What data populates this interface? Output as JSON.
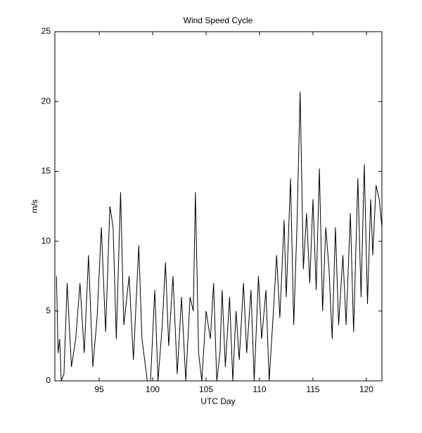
{
  "chart_data": {
    "type": "line",
    "title": "Wind Speed Cycle",
    "x_label": "UTC Day",
    "y_label": "m/s",
    "x": [
      91.0,
      91.15,
      91.3,
      91.45,
      91.7,
      92.0,
      92.4,
      92.8,
      93.2,
      93.6,
      94.0,
      94.4,
      94.8,
      95.2,
      95.6,
      96.0,
      96.3,
      96.6,
      97.0,
      97.3,
      97.8,
      98.2,
      98.7,
      99.0,
      99.5,
      99.8,
      100.2,
      100.5,
      100.9,
      101.2,
      101.5,
      101.9,
      102.3,
      102.7,
      103.1,
      103.5,
      103.8,
      104.0,
      104.3,
      104.6,
      105.0,
      105.4,
      105.7,
      106.0,
      106.3,
      106.5,
      106.8,
      107.2,
      107.5,
      107.8,
      108.1,
      108.5,
      108.8,
      109.2,
      109.5,
      109.9,
      110.2,
      110.6,
      110.9,
      111.3,
      111.6,
      111.9,
      112.3,
      112.5,
      112.9,
      113.2,
      113.5,
      113.8,
      114.1,
      114.4,
      114.7,
      115.0,
      115.3,
      115.6,
      115.9,
      116.2,
      116.5,
      116.8,
      117.1,
      117.4,
      117.8,
      118.1,
      118.5,
      118.8,
      119.2,
      119.5,
      119.8,
      120.1,
      120.4,
      120.6,
      120.9,
      121.2,
      121.45
    ],
    "series": [
      {
        "name": "Wind speed",
        "color": "#000000",
        "values": [
          7.5,
          2,
          3,
          0,
          0.5,
          7,
          1,
          3,
          7,
          2,
          9,
          1,
          4.5,
          11,
          3.5,
          12.5,
          11,
          3,
          13.5,
          4,
          7.5,
          1.5,
          9.7,
          3,
          0,
          0,
          6.5,
          0,
          4,
          8.5,
          2.5,
          7.5,
          0.5,
          6,
          0,
          6,
          5,
          13.5,
          2,
          0,
          5,
          3,
          7,
          0,
          2,
          6.5,
          1,
          6,
          0,
          5,
          1.5,
          7,
          2,
          6.5,
          0,
          7.5,
          3,
          6.5,
          0,
          5,
          9,
          4.5,
          11.5,
          6,
          14.5,
          4,
          11,
          20.7,
          8,
          12,
          7,
          13,
          6.5,
          15.2,
          5,
          11,
          8,
          3,
          11,
          4,
          9,
          4,
          12,
          3.5,
          14.5,
          6,
          15.5,
          5.5,
          13,
          9,
          14,
          13,
          11
        ]
      }
    ],
    "xlim": [
      90.85,
      121.45
    ],
    "ylim": [
      0,
      25
    ],
    "xticks": [
      95,
      100,
      105,
      110,
      115,
      120
    ],
    "yticks": [
      0,
      5,
      10,
      15,
      20,
      25
    ]
  }
}
